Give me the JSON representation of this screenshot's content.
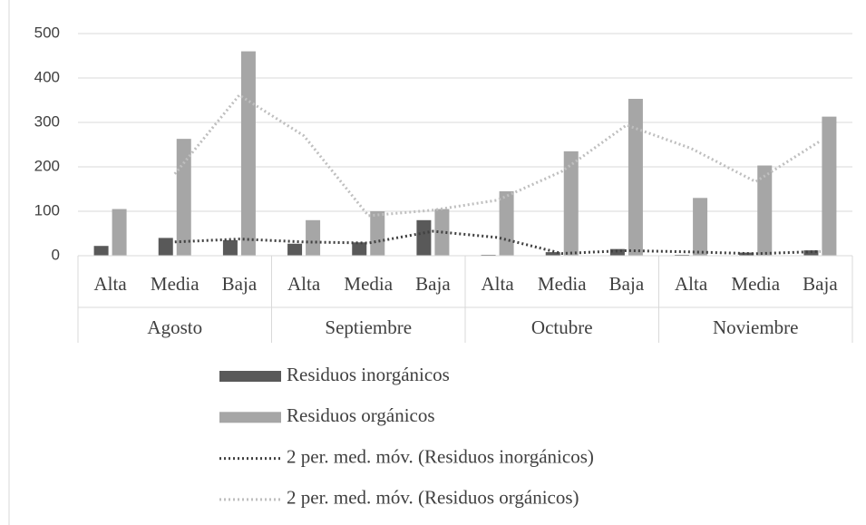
{
  "chart_data": {
    "type": "bar",
    "categories": [
      "Alta",
      "Media",
      "Baja",
      "Alta",
      "Media",
      "Baja",
      "Alta",
      "Media",
      "Baja",
      "Alta",
      "Media",
      "Baja"
    ],
    "groups": [
      "Agosto",
      "Septiembre",
      "Octubre",
      "Noviembre"
    ],
    "series": [
      {
        "name": "Residuos inorgánicos",
        "type": "bar",
        "color": "#595959",
        "values": [
          22,
          40,
          35,
          27,
          30,
          80,
          2,
          8,
          15,
          2,
          7,
          12
        ]
      },
      {
        "name": "Residuos orgánicos",
        "type": "bar",
        "color": "#a6a6a6",
        "values": [
          105,
          263,
          460,
          80,
          100,
          105,
          145,
          235,
          353,
          130,
          203,
          313
        ]
      },
      {
        "name": "2 per. med. móv. (Residuos inorgánicos)",
        "type": "line",
        "color": "#404040",
        "values": [
          null,
          31,
          37.5,
          31,
          28.5,
          55,
          41,
          5,
          11.5,
          8.5,
          4.5,
          9.5
        ]
      },
      {
        "name": "2 per. med. móv. (Residuos orgánicos)",
        "type": "line",
        "color": "#bfbfbf",
        "values": [
          null,
          184,
          361.5,
          270,
          90,
          102.5,
          125,
          190,
          294,
          241.5,
          166.5,
          258
        ]
      }
    ],
    "ylim": [
      0,
      500
    ],
    "yticks": [
      0,
      100,
      200,
      300,
      400,
      500
    ],
    "grid": true
  }
}
